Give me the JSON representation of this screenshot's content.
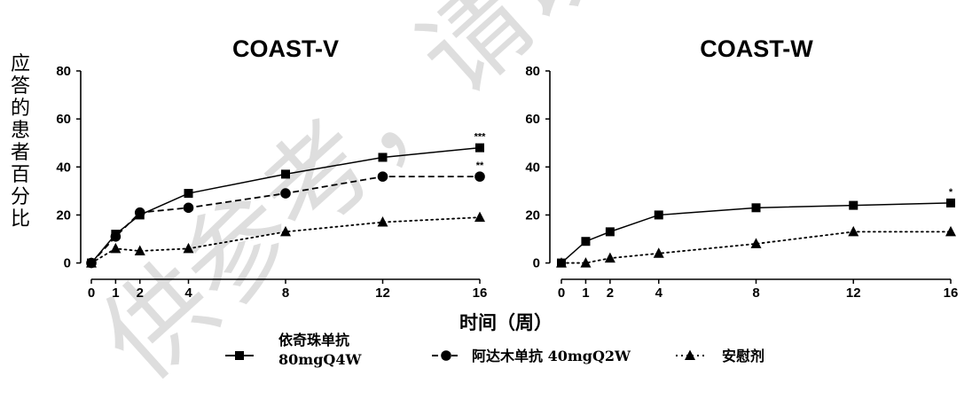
{
  "chart_data": [
    {
      "type": "line",
      "title": "COAST-V",
      "ylabel": "应答的患者百分比",
      "xlabel": "时间（周）",
      "x_ticks": [
        0,
        1,
        2,
        4,
        8,
        12,
        16
      ],
      "y_ticks": [
        0,
        20,
        40,
        60,
        80
      ],
      "xlim": [
        0,
        16
      ],
      "ylim": [
        -2,
        80
      ],
      "series": [
        {
          "name": "依奇珠单抗 80mgQ4W",
          "marker": "square",
          "line": "solid",
          "x": [
            0,
            1,
            2,
            4,
            8,
            12,
            16
          ],
          "y": [
            0,
            12,
            20,
            29,
            37,
            44,
            48
          ],
          "annotation": "***"
        },
        {
          "name": "阿达木单抗 40mgQ2W",
          "marker": "circle",
          "line": "dashed",
          "x": [
            0,
            1,
            2,
            4,
            8,
            12,
            16
          ],
          "y": [
            0,
            11,
            21,
            23,
            29,
            36,
            36
          ],
          "annotation": "**"
        },
        {
          "name": "安慰剂",
          "marker": "triangle",
          "line": "dotted",
          "x": [
            0,
            1,
            2,
            4,
            8,
            12,
            16
          ],
          "y": [
            0,
            6,
            5,
            6,
            13,
            17,
            19
          ],
          "annotation": ""
        }
      ]
    },
    {
      "type": "line",
      "title": "COAST-W",
      "x_ticks": [
        0,
        1,
        2,
        4,
        8,
        12,
        16
      ],
      "y_ticks": [
        0,
        20,
        40,
        60,
        80
      ],
      "xlim": [
        0,
        16
      ],
      "ylim": [
        -2,
        80
      ],
      "series": [
        {
          "name": "依奇珠单抗 80mgQ4W",
          "marker": "square",
          "line": "solid",
          "x": [
            0,
            1,
            2,
            4,
            8,
            12,
            16
          ],
          "y": [
            0,
            9,
            13,
            20,
            23,
            24,
            25
          ],
          "annotation": "*"
        },
        {
          "name": "安慰剂",
          "marker": "triangle",
          "line": "dotted",
          "x": [
            0,
            1,
            2,
            4,
            8,
            12,
            16
          ],
          "y": [
            0,
            0,
            2,
            4,
            8,
            13,
            13
          ],
          "annotation": ""
        }
      ]
    }
  ],
  "legend": {
    "item1_line1": "依奇珠单抗",
    "item1_line2": "80mgQ4W",
    "item2": "阿达木单抗 40mgQ2W",
    "item3": "安慰剂"
  },
  "watermark": "供参考，请以包"
}
